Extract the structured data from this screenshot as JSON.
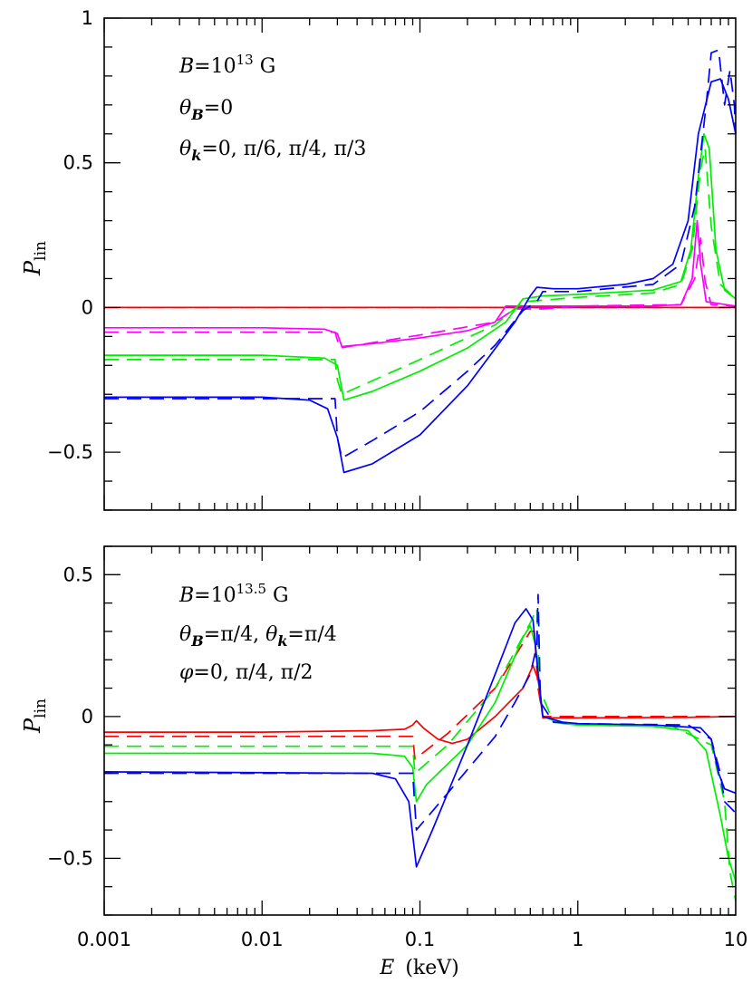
{
  "colors": {
    "red": "#ff0000",
    "magenta": "#ff00ff",
    "green": "#00ee00",
    "blue": "#0000ff"
  },
  "xlabel": {
    "symbol": "E",
    "unit": "(keV)"
  },
  "ylabel": {
    "symbol": "P",
    "sub": "lin"
  },
  "chart_data": [
    {
      "type": "line",
      "title": "",
      "xscale": "log",
      "xlim": [
        0.001,
        10
      ],
      "ylim": [
        -0.7,
        1.0
      ],
      "xticks": [
        "0.001",
        "0.01",
        "0.1",
        "1",
        "10"
      ],
      "yticks": [
        {
          "v": 1,
          "label": "1"
        },
        {
          "v": 0.5,
          "label": "0.5"
        },
        {
          "v": 0,
          "label": "0"
        },
        {
          "v": -0.5,
          "label": "−0.5"
        }
      ],
      "annotation": {
        "line1": [
          "B",
          "=10",
          "13",
          " G"
        ],
        "line2": [
          "θ",
          "B",
          "=0"
        ],
        "line3": [
          "θ",
          "k",
          "=0,  π/6,  π/4,  π/3"
        ]
      },
      "series": [
        {
          "color": "red",
          "dash": false,
          "points": [
            [
              0.001,
              0
            ],
            [
              0.01,
              0
            ],
            [
              0.1,
              0
            ],
            [
              1,
              0
            ],
            [
              10,
              0
            ]
          ]
        },
        {
          "color": "red",
          "dash": true,
          "points": [
            [
              0.001,
              0
            ],
            [
              0.01,
              0
            ],
            [
              0.1,
              0
            ],
            [
              1,
              0
            ],
            [
              10,
              0
            ]
          ]
        },
        {
          "color": "magenta",
          "dash": false,
          "points": [
            [
              0.001,
              -0.07
            ],
            [
              0.01,
              -0.07
            ],
            [
              0.025,
              -0.075
            ],
            [
              0.03,
              -0.09
            ],
            [
              0.032,
              -0.135
            ],
            [
              0.05,
              -0.125
            ],
            [
              0.1,
              -0.105
            ],
            [
              0.2,
              -0.08
            ],
            [
              0.3,
              -0.05
            ],
            [
              0.35,
              0.005
            ],
            [
              0.5,
              0.005
            ],
            [
              1,
              0.005
            ],
            [
              3,
              0.005
            ],
            [
              4.5,
              0.01
            ],
            [
              5.3,
              0.1
            ],
            [
              5.7,
              0.3
            ],
            [
              6.0,
              0.15
            ],
            [
              6.5,
              0.02
            ],
            [
              10,
              0.005
            ]
          ]
        },
        {
          "color": "magenta",
          "dash": true,
          "points": [
            [
              0.001,
              -0.085
            ],
            [
              0.029,
              -0.085
            ],
            [
              0.031,
              -0.14
            ],
            [
              0.1,
              -0.095
            ],
            [
              0.3,
              -0.05
            ],
            [
              0.4,
              -0.005
            ],
            [
              0.6,
              -0.005
            ],
            [
              1,
              0.005
            ],
            [
              4.5,
              0.01
            ],
            [
              5.5,
              0.1
            ],
            [
              6.0,
              0.24
            ],
            [
              6.4,
              0.09
            ],
            [
              7,
              0.01
            ],
            [
              10,
              0.005
            ]
          ]
        },
        {
          "color": "green",
          "dash": false,
          "points": [
            [
              0.001,
              -0.165
            ],
            [
              0.01,
              -0.165
            ],
            [
              0.025,
              -0.175
            ],
            [
              0.03,
              -0.2
            ],
            [
              0.033,
              -0.32
            ],
            [
              0.05,
              -0.29
            ],
            [
              0.1,
              -0.22
            ],
            [
              0.2,
              -0.14
            ],
            [
              0.35,
              -0.05
            ],
            [
              0.45,
              0.03
            ],
            [
              0.6,
              0.04
            ],
            [
              1,
              0.045
            ],
            [
              3,
              0.06
            ],
            [
              4.5,
              0.09
            ],
            [
              5.2,
              0.2
            ],
            [
              5.8,
              0.45
            ],
            [
              6.3,
              0.6
            ],
            [
              6.8,
              0.55
            ],
            [
              7.5,
              0.2
            ],
            [
              8.5,
              0.06
            ],
            [
              10,
              0.03
            ]
          ]
        },
        {
          "color": "green",
          "dash": true,
          "points": [
            [
              0.001,
              -0.18
            ],
            [
              0.029,
              -0.18
            ],
            [
              0.03,
              -0.25
            ],
            [
              0.032,
              -0.3
            ],
            [
              0.1,
              -0.18
            ],
            [
              0.3,
              -0.06
            ],
            [
              0.45,
              0.02
            ],
            [
              0.6,
              0.025
            ],
            [
              1,
              0.035
            ],
            [
              3,
              0.05
            ],
            [
              4.5,
              0.08
            ],
            [
              5.3,
              0.2
            ],
            [
              6.0,
              0.48
            ],
            [
              6.4,
              0.55
            ],
            [
              7,
              0.28
            ],
            [
              8,
              0.08
            ],
            [
              10,
              0.03
            ]
          ]
        },
        {
          "color": "blue",
          "dash": false,
          "points": [
            [
              0.001,
              -0.31
            ],
            [
              0.01,
              -0.31
            ],
            [
              0.02,
              -0.32
            ],
            [
              0.026,
              -0.35
            ],
            [
              0.03,
              -0.45
            ],
            [
              0.033,
              -0.57
            ],
            [
              0.05,
              -0.54
            ],
            [
              0.1,
              -0.44
            ],
            [
              0.2,
              -0.27
            ],
            [
              0.4,
              -0.05
            ],
            [
              0.5,
              0.04
            ],
            [
              0.55,
              0.07
            ],
            [
              0.7,
              0.065
            ],
            [
              1,
              0.065
            ],
            [
              2,
              0.08
            ],
            [
              3,
              0.1
            ],
            [
              4,
              0.15
            ],
            [
              5,
              0.3
            ],
            [
              5.8,
              0.6
            ],
            [
              7,
              0.78
            ],
            [
              8,
              0.79
            ],
            [
              9,
              0.72
            ],
            [
              10,
              0.6
            ]
          ]
        },
        {
          "color": "blue",
          "dash": true,
          "points": [
            [
              0.001,
              -0.315
            ],
            [
              0.029,
              -0.315
            ],
            [
              0.03,
              -0.45
            ],
            [
              0.032,
              -0.52
            ],
            [
              0.05,
              -0.46
            ],
            [
              0.1,
              -0.36
            ],
            [
              0.2,
              -0.22
            ],
            [
              0.3,
              -0.13
            ],
            [
              0.45,
              -0.01
            ],
            [
              0.55,
              0.02
            ],
            [
              0.6,
              0.055
            ],
            [
              1,
              0.055
            ],
            [
              3,
              0.08
            ],
            [
              4.5,
              0.15
            ],
            [
              5.5,
              0.35
            ],
            [
              6.5,
              0.7
            ],
            [
              7,
              0.88
            ],
            [
              7.8,
              0.89
            ],
            [
              8.5,
              0.7
            ],
            [
              9.2,
              0.82
            ],
            [
              9.8,
              0.7
            ],
            [
              10,
              0.6
            ]
          ]
        }
      ]
    },
    {
      "type": "line",
      "title": "",
      "xscale": "log",
      "xlim": [
        0.001,
        10
      ],
      "ylim": [
        -0.7,
        0.6
      ],
      "xticks": [
        "0.001",
        "0.01",
        "0.1",
        "1",
        "10"
      ],
      "yticks": [
        {
          "v": 0.5,
          "label": "0.5"
        },
        {
          "v": 0,
          "label": "0"
        },
        {
          "v": -0.5,
          "label": "−0.5"
        }
      ],
      "annotation": {
        "line1": [
          "B",
          "=10",
          "13.5",
          " G"
        ],
        "line2": [
          "θ",
          "B",
          "=π/4,  ",
          "θ",
          "k",
          "=π/4"
        ],
        "line3": [
          "φ",
          "=0,  π/4,  π/2"
        ]
      },
      "series": [
        {
          "color": "red",
          "dash": false,
          "points": [
            [
              0.001,
              -0.055
            ],
            [
              0.01,
              -0.055
            ],
            [
              0.05,
              -0.05
            ],
            [
              0.08,
              -0.045
            ],
            [
              0.09,
              -0.03
            ],
            [
              0.095,
              -0.015
            ],
            [
              0.105,
              -0.04
            ],
            [
              0.13,
              -0.08
            ],
            [
              0.16,
              -0.095
            ],
            [
              0.2,
              -0.08
            ],
            [
              0.3,
              0.0
            ],
            [
              0.45,
              0.1
            ],
            [
              0.52,
              0.18
            ],
            [
              0.56,
              0.13
            ],
            [
              0.6,
              -0.005
            ],
            [
              1,
              -0.005
            ],
            [
              5,
              -0.003
            ],
            [
              10,
              0.0
            ]
          ]
        },
        {
          "color": "red",
          "dash": true,
          "points": [
            [
              0.001,
              -0.07
            ],
            [
              0.09,
              -0.07
            ],
            [
              0.093,
              -0.15
            ],
            [
              0.15,
              -0.06
            ],
            [
              0.3,
              0.1
            ],
            [
              0.5,
              0.3
            ],
            [
              0.53,
              0.3
            ],
            [
              0.56,
              0.1
            ],
            [
              0.6,
              0.0
            ],
            [
              10,
              0.0
            ]
          ]
        },
        {
          "color": "green",
          "dash": false,
          "points": [
            [
              0.001,
              -0.13
            ],
            [
              0.05,
              -0.13
            ],
            [
              0.08,
              -0.14
            ],
            [
              0.09,
              -0.18
            ],
            [
              0.095,
              -0.3
            ],
            [
              0.11,
              -0.24
            ],
            [
              0.2,
              -0.1
            ],
            [
              0.3,
              0.05
            ],
            [
              0.45,
              0.28
            ],
            [
              0.5,
              0.32
            ],
            [
              0.54,
              0.25
            ],
            [
              0.6,
              0.0
            ],
            [
              0.8,
              -0.025
            ],
            [
              1,
              -0.03
            ],
            [
              3,
              -0.035
            ],
            [
              5,
              -0.05
            ],
            [
              6.5,
              -0.12
            ],
            [
              8,
              -0.35
            ],
            [
              9,
              -0.5
            ],
            [
              10,
              -0.58
            ]
          ]
        },
        {
          "color": "green",
          "dash": true,
          "points": [
            [
              0.001,
              -0.105
            ],
            [
              0.09,
              -0.105
            ],
            [
              0.093,
              -0.2
            ],
            [
              0.15,
              -0.1
            ],
            [
              0.3,
              0.1
            ],
            [
              0.5,
              0.33
            ],
            [
              0.55,
              0.38
            ],
            [
              0.57,
              0.1
            ],
            [
              0.7,
              -0.02
            ],
            [
              1,
              -0.03
            ],
            [
              4,
              -0.035
            ],
            [
              7,
              -0.1
            ],
            [
              8.5,
              -0.3
            ],
            [
              9.2,
              -0.55
            ],
            [
              10,
              -0.65
            ]
          ]
        },
        {
          "color": "blue",
          "dash": false,
          "points": [
            [
              0.001,
              -0.195
            ],
            [
              0.05,
              -0.2
            ],
            [
              0.07,
              -0.22
            ],
            [
              0.085,
              -0.3
            ],
            [
              0.095,
              -0.53
            ],
            [
              0.12,
              -0.4
            ],
            [
              0.2,
              -0.1
            ],
            [
              0.3,
              0.15
            ],
            [
              0.4,
              0.33
            ],
            [
              0.47,
              0.38
            ],
            [
              0.52,
              0.34
            ],
            [
              0.56,
              0.15
            ],
            [
              0.6,
              0.0
            ],
            [
              0.8,
              -0.02
            ],
            [
              1,
              -0.025
            ],
            [
              3,
              -0.03
            ],
            [
              6,
              -0.04
            ],
            [
              7,
              -0.08
            ],
            [
              7.8,
              -0.2
            ],
            [
              8.5,
              -0.255
            ],
            [
              10,
              -0.27
            ]
          ]
        },
        {
          "color": "blue",
          "dash": true,
          "points": [
            [
              0.001,
              -0.2
            ],
            [
              0.09,
              -0.2
            ],
            [
              0.095,
              -0.4
            ],
            [
              0.15,
              -0.27
            ],
            [
              0.3,
              -0.07
            ],
            [
              0.4,
              0.05
            ],
            [
              0.5,
              0.15
            ],
            [
              0.55,
              0.25
            ],
            [
              0.56,
              0.43
            ],
            [
              0.58,
              0.05
            ],
            [
              0.7,
              -0.02
            ],
            [
              1,
              -0.025
            ],
            [
              5,
              -0.03
            ],
            [
              7,
              -0.08
            ],
            [
              8,
              -0.2
            ],
            [
              8.5,
              -0.3
            ],
            [
              10,
              -0.34
            ]
          ]
        }
      ]
    }
  ]
}
